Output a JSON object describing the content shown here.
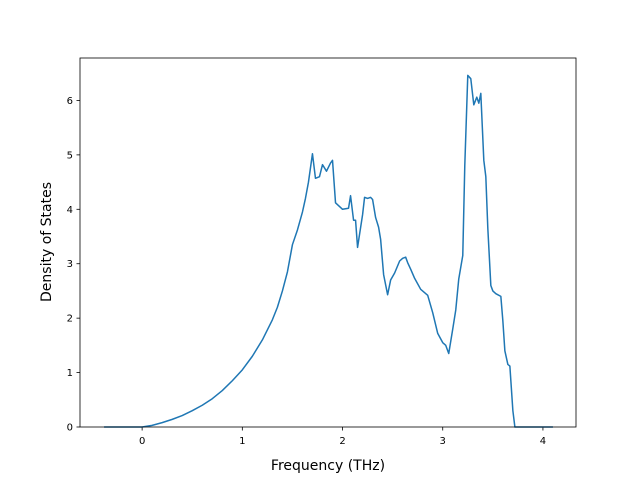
{
  "chart_data": {
    "type": "line",
    "title": "",
    "xlabel": "Frequency (THz)",
    "ylabel": "Density of States",
    "xlim": [
      -0.62,
      4.33
    ],
    "ylim": [
      0,
      6.78
    ],
    "xticks": [
      0,
      1,
      2,
      3,
      4
    ],
    "yticks": [
      0,
      1,
      2,
      3,
      4,
      5,
      6
    ],
    "grid": false,
    "colors": {
      "line": "#1f77b4",
      "axes": "#000000",
      "background": "#ffffff"
    },
    "series": [
      {
        "x": [
          -0.38,
          0.0,
          0.1,
          0.2,
          0.3,
          0.4,
          0.5,
          0.6,
          0.7,
          0.8,
          0.9,
          1.0,
          1.1,
          1.2,
          1.3,
          1.35,
          1.4,
          1.45,
          1.5,
          1.55,
          1.6,
          1.63,
          1.66,
          1.7,
          1.73,
          1.77,
          1.8,
          1.84,
          1.88,
          1.9,
          1.93,
          2.0,
          2.06,
          2.08,
          2.11,
          2.13,
          2.15,
          2.2,
          2.22,
          2.25,
          2.28,
          2.3,
          2.33,
          2.36,
          2.38,
          2.41,
          2.45,
          2.48,
          2.52,
          2.57,
          2.6,
          2.63,
          2.65,
          2.68,
          2.72,
          2.78,
          2.85,
          2.9,
          2.95,
          3.0,
          3.03,
          3.06,
          3.1,
          3.13,
          3.16,
          3.2,
          3.22,
          3.25,
          3.28,
          3.31,
          3.34,
          3.36,
          3.38,
          3.41,
          3.43,
          3.45,
          3.48,
          3.5,
          3.53,
          3.58,
          3.6,
          3.62,
          3.65,
          3.67,
          3.7,
          3.72,
          3.75,
          4.1
        ],
        "y": [
          0.0,
          0.0,
          0.03,
          0.08,
          0.14,
          0.21,
          0.3,
          0.4,
          0.52,
          0.67,
          0.85,
          1.05,
          1.3,
          1.6,
          1.97,
          2.2,
          2.5,
          2.85,
          3.35,
          3.62,
          3.95,
          4.2,
          4.5,
          5.02,
          4.57,
          4.6,
          4.82,
          4.7,
          4.85,
          4.9,
          4.12,
          4.0,
          4.02,
          4.25,
          3.8,
          3.8,
          3.3,
          3.9,
          4.22,
          4.2,
          4.22,
          4.18,
          3.85,
          3.67,
          3.45,
          2.8,
          2.43,
          2.7,
          2.83,
          3.05,
          3.1,
          3.12,
          3.02,
          2.9,
          2.73,
          2.53,
          2.42,
          2.1,
          1.72,
          1.55,
          1.5,
          1.35,
          1.8,
          2.15,
          2.72,
          3.15,
          4.8,
          6.46,
          6.4,
          5.92,
          6.06,
          5.95,
          6.13,
          4.9,
          4.6,
          3.65,
          2.6,
          2.5,
          2.45,
          2.4,
          1.95,
          1.4,
          1.15,
          1.12,
          0.3,
          0.0,
          0.0,
          0.0
        ]
      }
    ]
  }
}
